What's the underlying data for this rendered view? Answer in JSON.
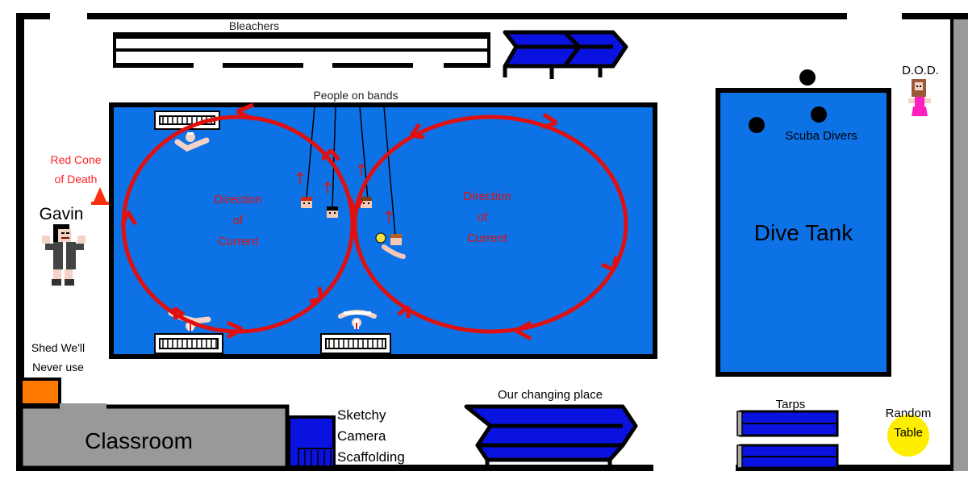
{
  "labels": {
    "bleachers": "Bleachers",
    "people_on_bands": "People on bands",
    "red_cone_line1": "Red Cone",
    "red_cone_line2": "of Death",
    "gavin": "Gavin",
    "current_left": [
      "Direction",
      "of",
      "Current"
    ],
    "current_right": [
      "Direction",
      "of",
      "Current"
    ],
    "dod": "D.O.D.",
    "scuba_divers": "Scuba Divers",
    "dive_tank": "Dive Tank",
    "shed_line1": "Shed We'll",
    "shed_line2": "Never use",
    "classroom": "Classroom",
    "camera_line1": "Sketchy",
    "camera_line2": "Camera",
    "camera_line3": "Scaffolding",
    "changing_place": "Our changing place",
    "tarps": "Tarps",
    "table_line1": "Random",
    "table_line2": "Table"
  },
  "colors": {
    "pool": "#0d72e6",
    "current_arrows": "#e01010",
    "cone_label": "#ff2020",
    "outline": "#000000",
    "blue_structures": "#0a12e0",
    "shed": "#ff7a00",
    "classroom": "#999999",
    "table": "#ffee00",
    "wall_right": "#999999"
  }
}
